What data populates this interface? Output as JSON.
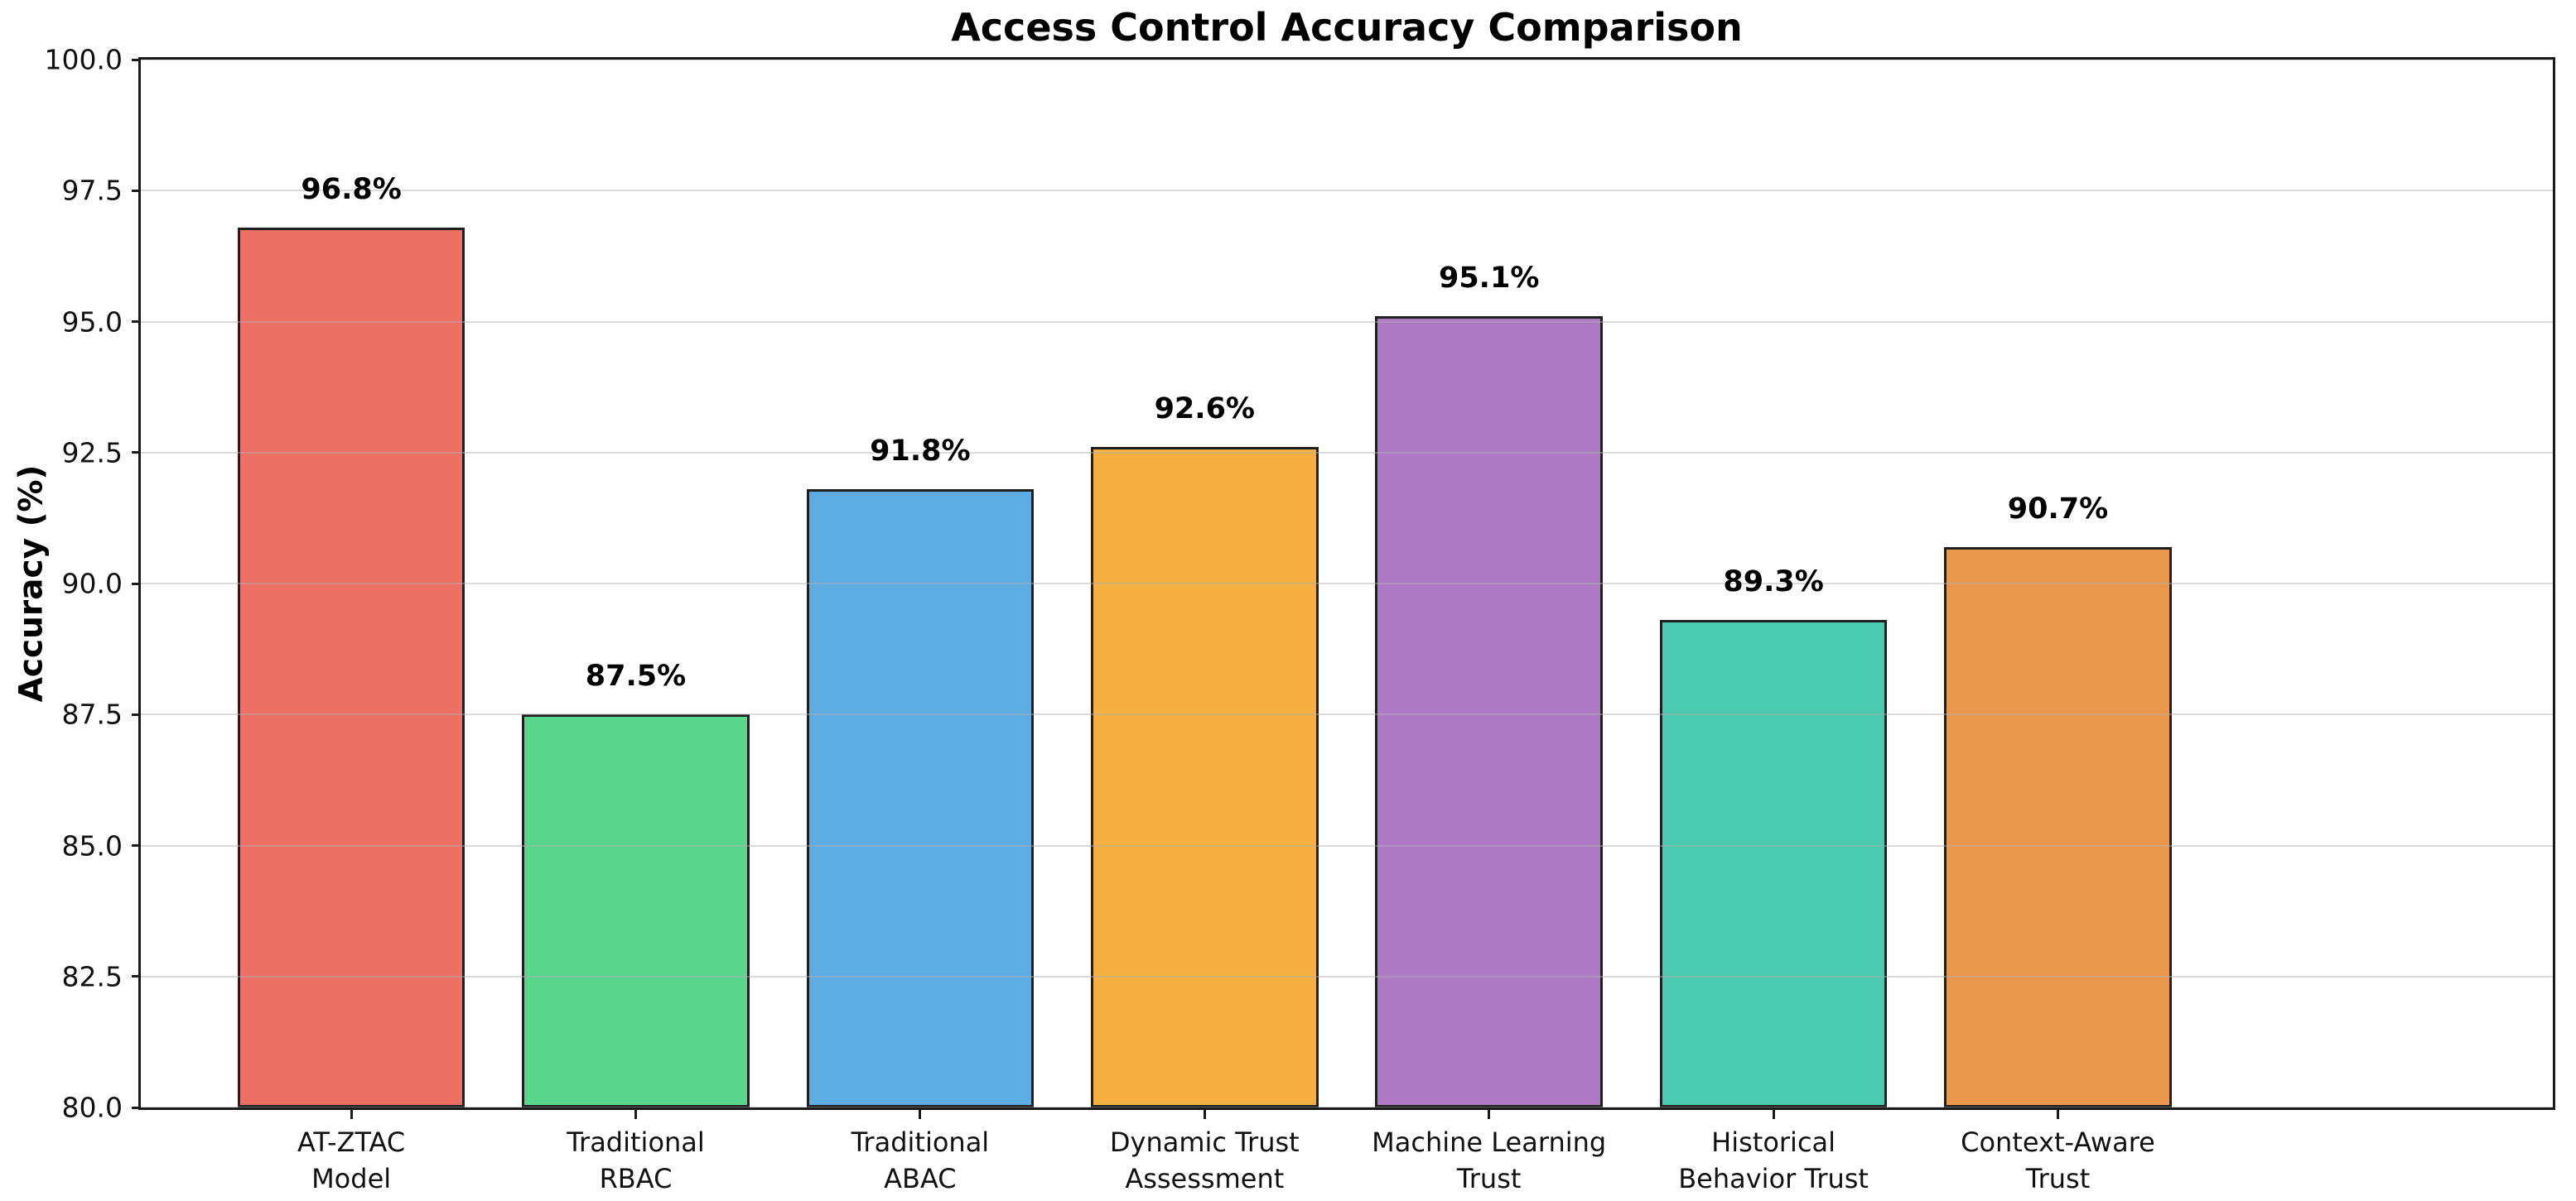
{
  "chart_data": {
    "type": "bar",
    "title": "Access Control Accuracy Comparison",
    "xlabel": "",
    "ylabel": "Accuracy (%)",
    "ylim": [
      80.0,
      100.0
    ],
    "yticks": [
      "80.0",
      "82.5",
      "85.0",
      "87.5",
      "90.0",
      "92.5",
      "95.0",
      "97.5",
      "100.0"
    ],
    "grid": true,
    "grid_on_top_of_bars": true,
    "legend": false,
    "categories": [
      "AT-ZTAC\nModel",
      "Traditional\nRBAC",
      "Traditional\nABAC",
      "Dynamic Trust\nAssessment",
      "Machine Learning\nTrust",
      "Historical\nBehavior Trust",
      "Context-Aware\nTrust"
    ],
    "values": [
      96.8,
      87.5,
      91.8,
      92.6,
      95.1,
      89.3,
      90.7
    ],
    "bar_labels": [
      "96.8%",
      "87.5%",
      "91.8%",
      "92.6%",
      "95.1%",
      "89.3%",
      "90.7%"
    ],
    "bar_colors": [
      "#ec7063",
      "#58d68d",
      "#5dade2",
      "#f5b041",
      "#af7ac5",
      "#48c9b0",
      "#eb984e"
    ],
    "bar_edge_color": "#1f1f1f",
    "grid_color": "rgba(176,176,176,0.45)",
    "axis_color": "#1a1a1a",
    "background_color": "#ffffff"
  }
}
